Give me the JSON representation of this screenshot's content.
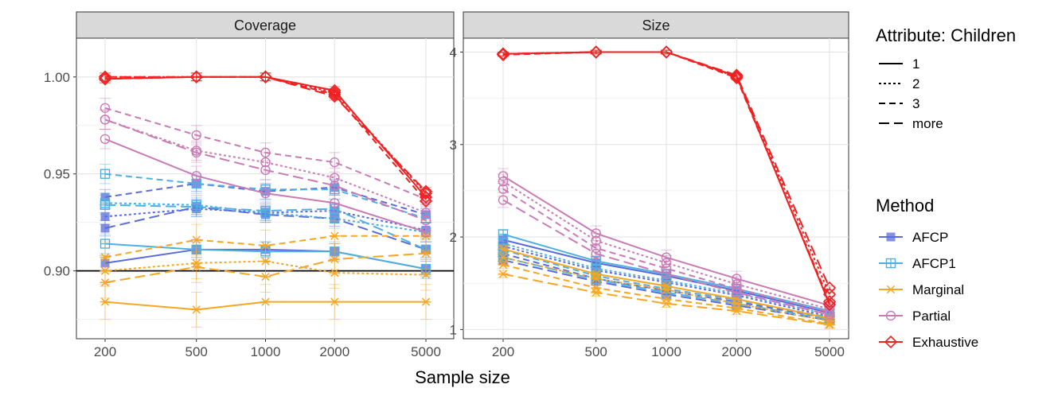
{
  "chart_data": {
    "type": "line",
    "xlabel": "Sample size",
    "x": [
      200,
      500,
      1000,
      2000,
      5000
    ],
    "x_tick_labels": [
      "200",
      "500",
      "1000",
      "2000",
      "5000"
    ],
    "x_scale": "log",
    "legend": {
      "linetype_title": "Attribute: Children",
      "linetype_entries": [
        {
          "label": "1",
          "dash": "solid"
        },
        {
          "label": "2",
          "dash": "dotted"
        },
        {
          "label": "3",
          "dash": "dashed"
        },
        {
          "label": "more",
          "dash": "longdash"
        }
      ],
      "method_title": "Method",
      "method_entries": [
        {
          "label": "AFCP",
          "color": "#5a6cdb",
          "marker": "square-filled"
        },
        {
          "label": "AFCP1",
          "color": "#4fb0e0",
          "marker": "square-plus"
        },
        {
          "label": "Marginal",
          "color": "#f5a623",
          "marker": "asterisk"
        },
        {
          "label": "Partial",
          "color": "#c97bb6",
          "marker": "circle-open"
        },
        {
          "label": "Exhaustive",
          "color": "#ee2222",
          "marker": "diamond-open"
        }
      ]
    },
    "panels": [
      {
        "title": "Coverage",
        "ylim": [
          0.865,
          1.02
        ],
        "y_ticks": [
          0.9,
          0.95,
          1.0
        ],
        "y_tick_labels": [
          "0.90",
          "0.95",
          "1.00"
        ],
        "hline": 0.9,
        "series": [
          {
            "method": "AFCP",
            "children": "1",
            "values": [
              0.904,
              0.911,
              0.911,
              0.91,
              0.901
            ],
            "err": 0.004
          },
          {
            "method": "AFCP",
            "children": "2",
            "values": [
              0.928,
              0.932,
              0.93,
              0.931,
              0.921
            ],
            "err": 0.004
          },
          {
            "method": "AFCP",
            "children": "3",
            "values": [
              0.938,
              0.945,
              0.941,
              0.943,
              0.929
            ],
            "err": 0.004
          },
          {
            "method": "AFCP",
            "children": "more",
            "values": [
              0.922,
              0.933,
              0.929,
              0.927,
              0.911
            ],
            "err": 0.004
          },
          {
            "method": "AFCP1",
            "children": "1",
            "values": [
              0.914,
              0.911,
              0.91,
              0.91,
              0.901
            ],
            "err": 0.005
          },
          {
            "method": "AFCP1",
            "children": "2",
            "values": [
              0.935,
              0.934,
              0.93,
              0.927,
              0.92
            ],
            "err": 0.005
          },
          {
            "method": "AFCP1",
            "children": "3",
            "values": [
              0.95,
              0.945,
              0.942,
              0.942,
              0.927
            ],
            "err": 0.005
          },
          {
            "method": "AFCP1",
            "children": "more",
            "values": [
              0.934,
              0.933,
              0.931,
              0.932,
              0.911
            ],
            "err": 0.005
          },
          {
            "method": "Marginal",
            "children": "1",
            "values": [
              0.884,
              0.88,
              0.884,
              0.884,
              0.884
            ],
            "err": 0.009
          },
          {
            "method": "Marginal",
            "children": "2",
            "values": [
              0.9,
              0.904,
              0.905,
              0.899,
              0.898
            ],
            "err": 0.008
          },
          {
            "method": "Marginal",
            "children": "3",
            "values": [
              0.907,
              0.916,
              0.913,
              0.918,
              0.918
            ],
            "err": 0.008
          },
          {
            "method": "Marginal",
            "children": "more",
            "values": [
              0.894,
              0.902,
              0.897,
              0.906,
              0.909
            ],
            "err": 0.008
          },
          {
            "method": "Partial",
            "children": "1",
            "values": [
              0.968,
              0.949,
              0.94,
              0.935,
              0.92
            ],
            "err": 0.005
          },
          {
            "method": "Partial",
            "children": "2",
            "values": [
              0.978,
              0.962,
              0.956,
              0.948,
              0.93
            ],
            "err": 0.005
          },
          {
            "method": "Partial",
            "children": "3",
            "values": [
              0.984,
              0.97,
              0.961,
              0.956,
              0.937
            ],
            "err": 0.005
          },
          {
            "method": "Partial",
            "children": "more",
            "values": [
              0.978,
              0.961,
              0.952,
              0.944,
              0.926
            ],
            "err": 0.005
          },
          {
            "method": "Exhaustive",
            "children": "1",
            "values": [
              0.999,
              1.0,
              1.0,
              0.993,
              0.938
            ],
            "err": 0.002
          },
          {
            "method": "Exhaustive",
            "children": "2",
            "values": [
              1.0,
              1.0,
              1.0,
              0.992,
              0.94
            ],
            "err": 0.002
          },
          {
            "method": "Exhaustive",
            "children": "3",
            "values": [
              0.999,
              1.0,
              1.0,
              0.991,
              0.936
            ],
            "err": 0.002
          },
          {
            "method": "Exhaustive",
            "children": "more",
            "values": [
              1.0,
              1.0,
              1.0,
              0.99,
              0.941
            ],
            "err": 0.002
          }
        ]
      },
      {
        "title": "Size",
        "ylim": [
          0.9,
          4.15
        ],
        "y_ticks": [
          1,
          2,
          3,
          4
        ],
        "y_tick_labels": [
          "1",
          "2",
          "3",
          "4"
        ],
        "hline": null,
        "series": [
          {
            "method": "AFCP",
            "children": "1",
            "values": [
              1.97,
              1.72,
              1.58,
              1.42,
              1.18
            ],
            "err": 0.04
          },
          {
            "method": "AFCP",
            "children": "2",
            "values": [
              1.9,
              1.64,
              1.51,
              1.37,
              1.14
            ],
            "err": 0.04
          },
          {
            "method": "AFCP",
            "children": "3",
            "values": [
              1.82,
              1.55,
              1.42,
              1.3,
              1.12
            ],
            "err": 0.04
          },
          {
            "method": "AFCP",
            "children": "more",
            "values": [
              1.75,
              1.52,
              1.38,
              1.26,
              1.1
            ],
            "err": 0.04
          },
          {
            "method": "AFCP1",
            "children": "1",
            "values": [
              2.03,
              1.74,
              1.6,
              1.44,
              1.2
            ],
            "err": 0.05
          },
          {
            "method": "AFCP1",
            "children": "2",
            "values": [
              1.93,
              1.66,
              1.53,
              1.39,
              1.16
            ],
            "err": 0.05
          },
          {
            "method": "AFCP1",
            "children": "3",
            "values": [
              1.86,
              1.58,
              1.44,
              1.32,
              1.13
            ],
            "err": 0.05
          },
          {
            "method": "AFCP1",
            "children": "more",
            "values": [
              1.78,
              1.54,
              1.4,
              1.28,
              1.11
            ],
            "err": 0.05
          },
          {
            "method": "Marginal",
            "children": "1",
            "values": [
              1.87,
              1.6,
              1.47,
              1.33,
              1.12
            ],
            "err": 0.04
          },
          {
            "method": "Marginal",
            "children": "2",
            "values": [
              1.78,
              1.55,
              1.43,
              1.28,
              1.09
            ],
            "err": 0.04
          },
          {
            "method": "Marginal",
            "children": "3",
            "values": [
              1.7,
              1.45,
              1.33,
              1.23,
              1.06
            ],
            "err": 0.04
          },
          {
            "method": "Marginal",
            "children": "more",
            "values": [
              1.6,
              1.4,
              1.28,
              1.2,
              1.05
            ],
            "err": 0.04
          },
          {
            "method": "Partial",
            "children": "1",
            "values": [
              2.66,
              2.04,
              1.78,
              1.55,
              1.26
            ],
            "err": 0.08
          },
          {
            "method": "Partial",
            "children": "2",
            "values": [
              2.6,
              1.96,
              1.72,
              1.49,
              1.22
            ],
            "err": 0.08
          },
          {
            "method": "Partial",
            "children": "3",
            "values": [
              2.52,
              1.88,
              1.66,
              1.44,
              1.19
            ],
            "err": 0.08
          },
          {
            "method": "Partial",
            "children": "more",
            "values": [
              2.4,
              1.82,
              1.6,
              1.4,
              1.16
            ],
            "err": 0.08
          },
          {
            "method": "Exhaustive",
            "children": "1",
            "values": [
              3.98,
              4.0,
              4.0,
              3.74,
              1.27
            ],
            "err": 0.02
          },
          {
            "method": "Exhaustive",
            "children": "2",
            "values": [
              3.98,
              4.0,
              4.0,
              3.73,
              1.38
            ],
            "err": 0.02
          },
          {
            "method": "Exhaustive",
            "children": "3",
            "values": [
              3.97,
              4.0,
              4.0,
              3.72,
              1.3
            ],
            "err": 0.02
          },
          {
            "method": "Exhaustive",
            "children": "more",
            "values": [
              3.98,
              4.0,
              4.0,
              3.75,
              1.45
            ],
            "err": 0.02
          }
        ]
      }
    ]
  }
}
